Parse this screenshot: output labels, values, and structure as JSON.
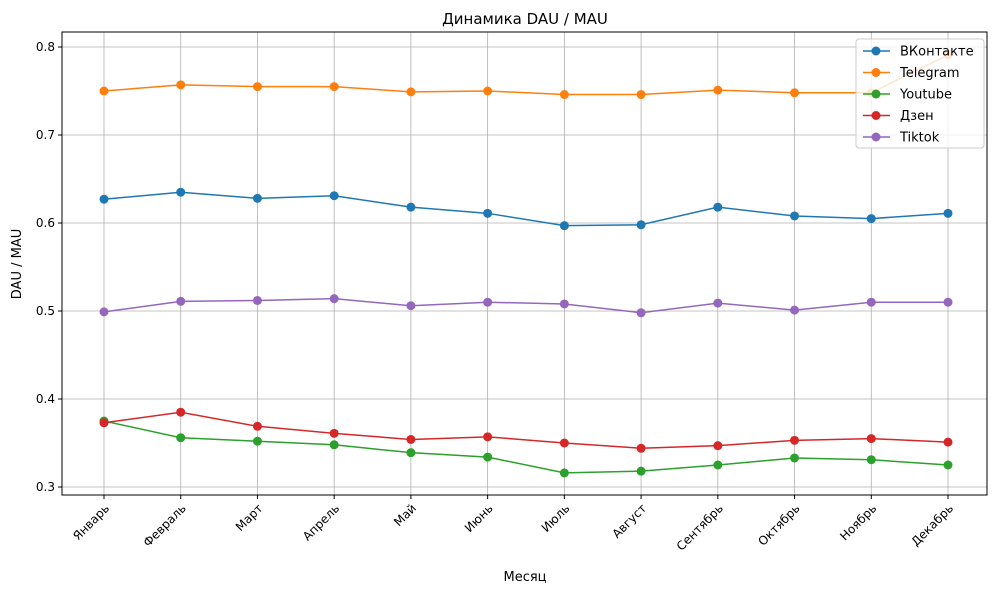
{
  "chart_data": {
    "type": "line",
    "title": "Динамика DAU / MAU",
    "xlabel": "Месяц",
    "ylabel": "DAU / MAU",
    "ylim": [
      0.29,
      0.818
    ],
    "yticks": [
      0.3,
      0.4,
      0.5,
      0.6,
      0.7,
      0.8
    ],
    "ytick_labels": [
      "0.3",
      "0.4",
      "0.5",
      "0.6",
      "0.7",
      "0.8"
    ],
    "grid": true,
    "legend_position": "top-right",
    "categories": [
      "Январь",
      "Февраль",
      "Март",
      "Апрель",
      "Май",
      "Июнь",
      "Июль",
      "Август",
      "Сентябрь",
      "Октябрь",
      "Ноябрь",
      "Декабрь"
    ],
    "series": [
      {
        "name": "ВКонтакте",
        "color": "#1f77b4",
        "values": [
          0.627,
          0.635,
          0.628,
          0.631,
          0.618,
          0.611,
          0.597,
          0.598,
          0.618,
          0.608,
          0.605,
          0.611
        ]
      },
      {
        "name": "Telegram",
        "color": "#ff7f0e",
        "values": [
          0.75,
          0.757,
          0.755,
          0.755,
          0.749,
          0.75,
          0.746,
          0.746,
          0.751,
          0.748,
          0.748,
          0.791
        ]
      },
      {
        "name": "Youtube",
        "color": "#2ca02c",
        "values": [
          0.375,
          0.356,
          0.352,
          0.348,
          0.339,
          0.334,
          0.316,
          0.318,
          0.325,
          0.333,
          0.331,
          0.325
        ]
      },
      {
        "name": "Дзен",
        "color": "#d62728",
        "values": [
          0.373,
          0.385,
          0.369,
          0.361,
          0.354,
          0.357,
          0.35,
          0.344,
          0.347,
          0.353,
          0.355,
          0.351
        ]
      },
      {
        "name": "Tiktok",
        "color": "#9467bd",
        "values": [
          0.499,
          0.511,
          0.512,
          0.514,
          0.506,
          0.51,
          0.508,
          0.498,
          0.509,
          0.501,
          0.51,
          0.51
        ]
      }
    ]
  }
}
